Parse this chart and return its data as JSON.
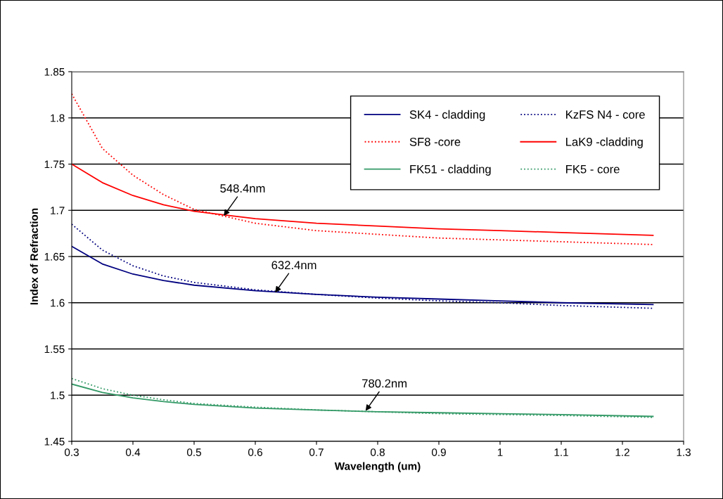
{
  "chart_data": {
    "type": "line",
    "xlabel": "Wavelength (um)",
    "ylabel": "Index of Refraction",
    "x": [
      0.3,
      0.35,
      0.4,
      0.45,
      0.5,
      0.6,
      0.7,
      0.8,
      0.9,
      1.0,
      1.1,
      1.25
    ],
    "series": [
      {
        "name": "SK4 - cladding",
        "color": "#000080",
        "line_style": "solid",
        "values": [
          1.661,
          1.642,
          1.631,
          1.624,
          1.619,
          1.613,
          1.609,
          1.606,
          1.604,
          1.602,
          1.6,
          1.598
        ]
      },
      {
        "name": "KzFS N4 - core",
        "color": "#000080",
        "line_style": "dotted",
        "values": [
          1.685,
          1.657,
          1.64,
          1.629,
          1.622,
          1.614,
          1.609,
          1.605,
          1.602,
          1.6,
          1.597,
          1.594
        ]
      },
      {
        "name": "SF8 -core",
        "color": "#ff0000",
        "line_style": "dotted",
        "values": [
          1.826,
          1.767,
          1.738,
          1.717,
          1.701,
          1.686,
          1.678,
          1.674,
          1.67,
          1.668,
          1.666,
          1.663
        ]
      },
      {
        "name": "LaK9 -cladding",
        "color": "#ff0000",
        "line_style": "solid",
        "values": [
          1.75,
          1.73,
          1.716,
          1.706,
          1.699,
          1.691,
          1.686,
          1.683,
          1.68,
          1.678,
          1.676,
          1.673
        ]
      },
      {
        "name": "FK51 - cladding",
        "color": "#339966",
        "line_style": "solid",
        "values": [
          1.512,
          1.503,
          1.497,
          1.493,
          1.49,
          1.486,
          1.484,
          1.482,
          1.481,
          1.48,
          1.479,
          1.477
        ]
      },
      {
        "name": "FK5 - core",
        "color": "#339966",
        "line_style": "dotted",
        "values": [
          1.518,
          1.507,
          1.5,
          1.495,
          1.491,
          1.487,
          1.484,
          1.482,
          1.48,
          1.479,
          1.478,
          1.476
        ]
      }
    ],
    "annotations": [
      {
        "text": "548.4nm",
        "x": 0.5484,
        "y": 1.694
      },
      {
        "text": "632.4nm",
        "x": 0.6324,
        "y": 1.611
      },
      {
        "text": "780.2nm",
        "x": 0.7802,
        "y": 1.483
      }
    ],
    "xlim": [
      0.3,
      1.3
    ],
    "xticks": [
      0.3,
      0.4,
      0.5,
      0.6,
      0.7,
      0.8,
      0.9,
      1,
      1.1,
      1.2,
      1.3
    ],
    "ylim": [
      1.45,
      1.85
    ],
    "yticks": [
      1.45,
      1.5,
      1.55,
      1.6,
      1.65,
      1.7,
      1.75,
      1.8,
      1.85
    ],
    "grid": "y",
    "legend": "top right",
    "marker": "none"
  }
}
